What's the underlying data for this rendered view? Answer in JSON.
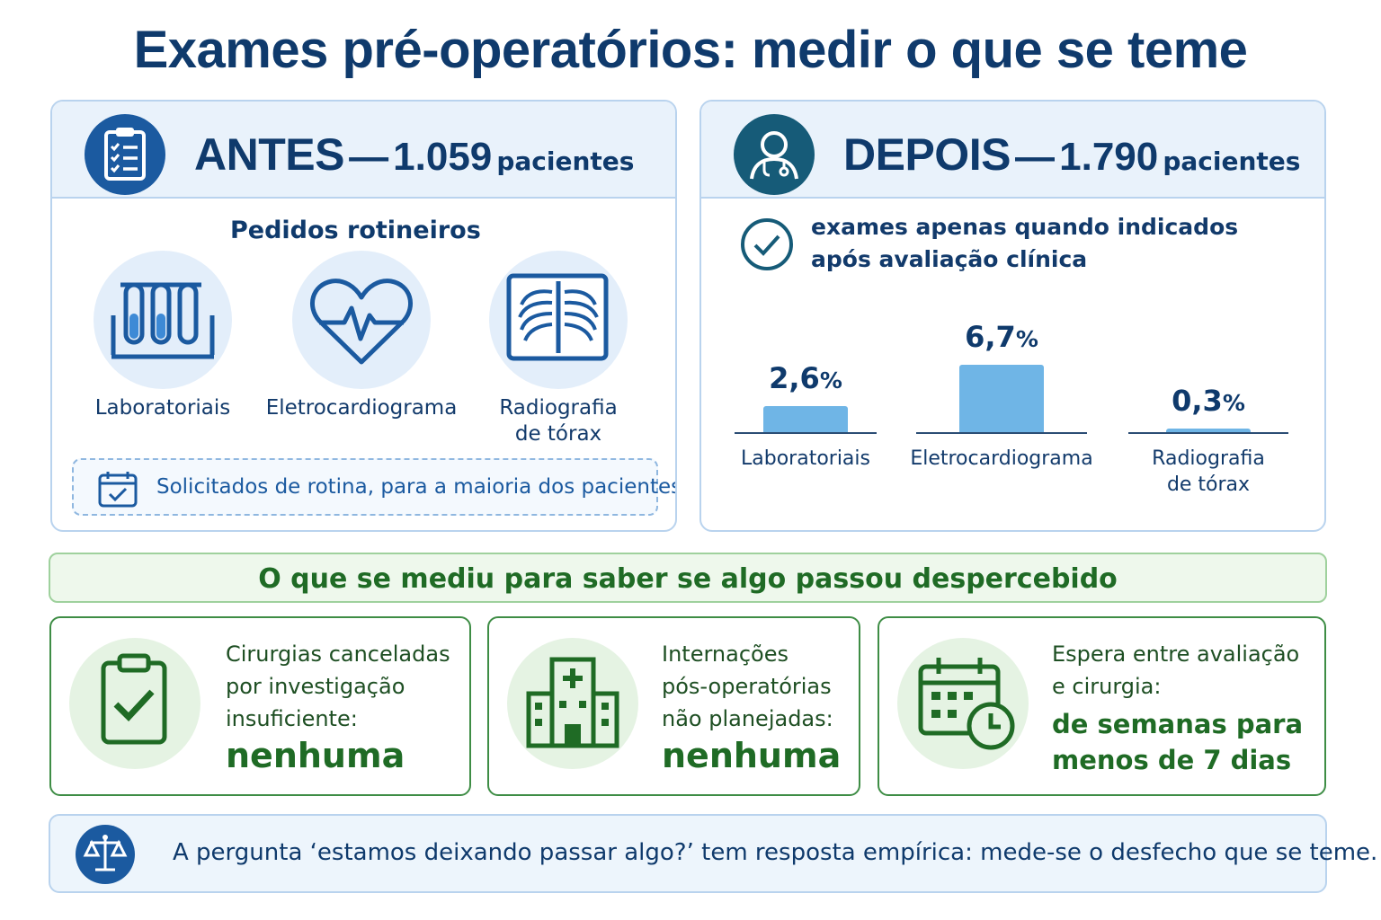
{
  "title": "Exames pré-operatórios: medir o que se teme",
  "before": {
    "heading": "ANTES",
    "dash": "—",
    "count": "1.059",
    "unit": "pacientes",
    "subtitle": "Pedidos rotineiros",
    "items": [
      {
        "label": "Laboratoriais",
        "icon": "test-tubes-icon"
      },
      {
        "label": "Eletrocardiograma",
        "icon": "heart-ecg-icon"
      },
      {
        "label_line1": "Radiografia",
        "label_line2": "de tórax",
        "icon": "chest-xray-icon"
      }
    ],
    "note": "Solicitados de rotina, para a maioria dos pacientes"
  },
  "after": {
    "heading": "DEPOIS",
    "dash": "—",
    "count": "1.790",
    "unit": "pacientes",
    "indication_line1": "exames apenas quando indicados",
    "indication_line2": "após avaliação clínica"
  },
  "chart_data": {
    "type": "bar",
    "categories": [
      "Laboratoriais",
      "Eletrocardiograma",
      "Radiografia de tórax"
    ],
    "values": [
      2.6,
      6.7,
      0.3
    ],
    "value_labels": [
      "2,6",
      "6,7",
      "0,3"
    ],
    "unit": "%",
    "category_lines": [
      [
        "Laboratoriais"
      ],
      [
        "Eletrocardiograma"
      ],
      [
        "Radiografia",
        "de tórax"
      ]
    ],
    "ylim": [
      0,
      8
    ],
    "bar_color": "#6fb5e6",
    "grid": false
  },
  "measured": {
    "banner": "O que se mediu para saber se algo passou despercebido",
    "cards": [
      {
        "lines": [
          "Cirurgias canceladas",
          "por investigação",
          "insuficiente:"
        ],
        "result": "nenhuma",
        "icon": "clipboard-check-icon"
      },
      {
        "lines": [
          "Internações",
          "pós-operatórias",
          "não planejadas:"
        ],
        "result": "nenhuma",
        "icon": "hospital-icon"
      },
      {
        "lines": [
          "Espera entre avaliação",
          "e cirurgia:"
        ],
        "result_lines": [
          "de semanas para",
          "menos de 7 dias"
        ],
        "icon": "calendar-clock-icon"
      }
    ]
  },
  "footer": {
    "text": "A pergunta ‘estamos deixando passar algo?’  tem resposta empírica: mede-se o desfecho que se teme.",
    "icon": "scales-icon"
  },
  "colors": {
    "navy": "#0f3a6c",
    "blue": "#1b5aa0",
    "light_blue": "#e9f2fb",
    "green": "#1f6b25",
    "light_green": "#eef8ec"
  }
}
